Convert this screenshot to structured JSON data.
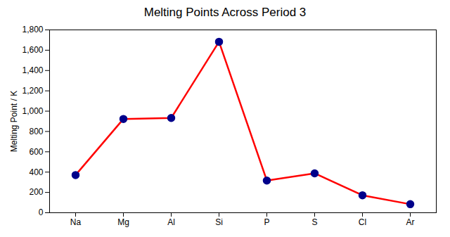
{
  "chart_data": {
    "type": "line",
    "title": "Melting Points Across Period 3",
    "ylabel": "Melting Point / K",
    "categories": [
      "Na",
      "Mg",
      "Al",
      "Si",
      "P",
      "S",
      "Cl",
      "Ar"
    ],
    "values": [
      371,
      923,
      933,
      1683,
      317,
      388,
      172,
      84
    ],
    "color": "#ff0000",
    "colors": [
      "#00008b",
      "#00008b",
      "#00008b",
      "#00008b",
      "#00008b",
      "#00008b",
      "#00008b",
      "#00008b"
    ],
    "marker": "circle",
    "ylim": [
      0,
      1800
    ],
    "yticks": [
      0,
      200,
      400,
      600,
      800,
      1000,
      1200,
      1400,
      1600,
      1800
    ],
    "grid": false
  }
}
